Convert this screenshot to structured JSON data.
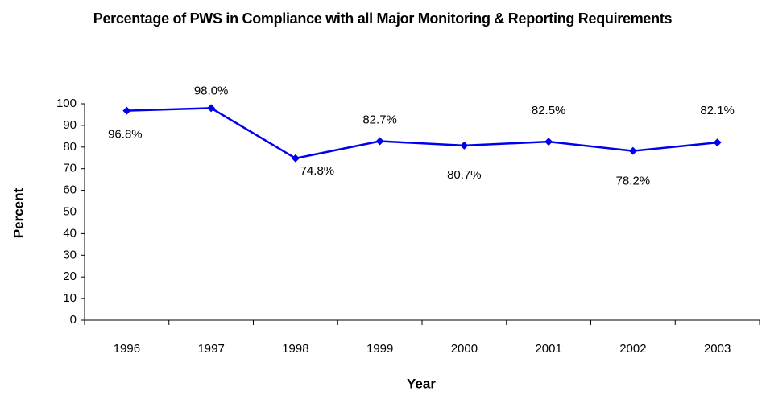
{
  "chart_data": {
    "type": "line",
    "title": "Percentage of PWS in Compliance with all Major Monitoring & Reporting Requirements",
    "x_label": "Year",
    "y_label": "Percent",
    "categories": [
      "1996",
      "1997",
      "1998",
      "1999",
      "2000",
      "2001",
      "2002",
      "2003"
    ],
    "values": [
      96.8,
      98.0,
      74.8,
      82.7,
      80.7,
      82.5,
      78.2,
      82.1
    ],
    "value_labels": [
      "96.8%",
      "98.0%",
      "74.8%",
      "82.7%",
      "80.7%",
      "82.5%",
      "78.2%",
      "82.1%"
    ],
    "color": "#0000ee",
    "ylim": [
      0,
      100
    ],
    "yticks": [
      0,
      10,
      20,
      30,
      40,
      50,
      60,
      70,
      80,
      90,
      100
    ],
    "grid": false
  }
}
